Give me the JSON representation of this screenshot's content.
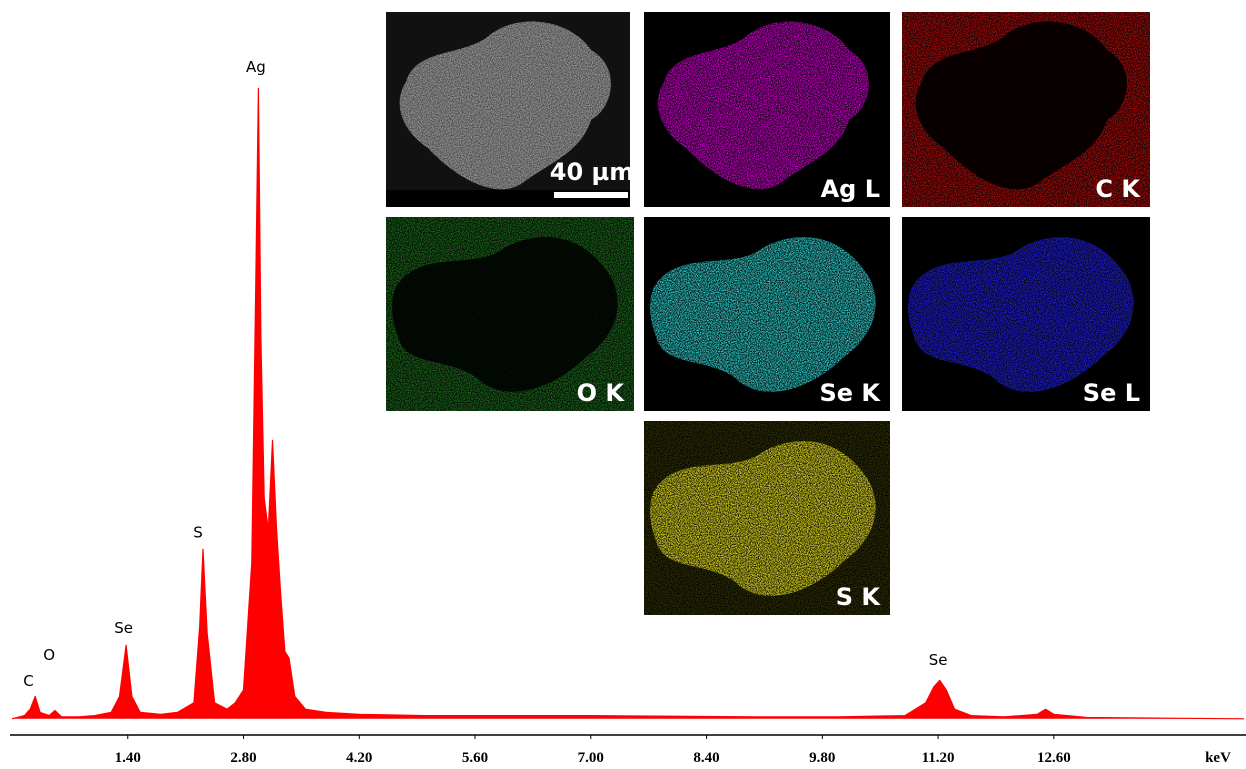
{
  "chart_data": {
    "type": "area",
    "color": "#ff0000",
    "x": [
      0,
      0.15,
      0.22,
      0.28,
      0.34,
      0.45,
      0.52,
      0.6,
      0.8,
      1.0,
      1.2,
      1.3,
      1.38,
      1.45,
      1.55,
      1.8,
      2.0,
      2.2,
      2.27,
      2.31,
      2.36,
      2.45,
      2.6,
      2.7,
      2.8,
      2.9,
      2.95,
      2.98,
      3.01,
      3.05,
      3.1,
      3.15,
      3.2,
      3.25,
      3.3,
      3.35,
      3.42,
      3.55,
      3.8,
      4.2,
      5.0,
      6.0,
      7.0,
      8.0,
      9.0,
      10.0,
      10.8,
      11.05,
      11.15,
      11.22,
      11.3,
      11.4,
      11.6,
      12.0,
      12.4,
      12.5,
      12.6,
      13.0,
      14.0,
      14.9
    ],
    "values": [
      0.5,
      1,
      2,
      4,
      1.5,
      1,
      1.8,
      0.8,
      0.8,
      1,
      1.5,
      4,
      12,
      4,
      1.5,
      1.2,
      1.5,
      3,
      15,
      27,
      14,
      3,
      2,
      3,
      5,
      25,
      70,
      99,
      60,
      35,
      30,
      44,
      30,
      20,
      11,
      10,
      4,
      2,
      1.5,
      1.2,
      1,
      1,
      1,
      0.9,
      0.8,
      0.8,
      1,
      3,
      5.5,
      6.5,
      5,
      2,
      1,
      0.8,
      1.2,
      2,
      1.2,
      0.7,
      0.6,
      0.5
    ],
    "xlim": [
      0,
      14.9
    ],
    "ylim": [
      0,
      105
    ],
    "xticks": [
      {
        "value": 1.4,
        "label": "1.40"
      },
      {
        "value": 2.8,
        "label": "2.80"
      },
      {
        "value": 4.2,
        "label": "4.20"
      },
      {
        "value": 5.6,
        "label": "5.60"
      },
      {
        "value": 7.0,
        "label": "7.00"
      },
      {
        "value": 8.4,
        "label": "8.40"
      },
      {
        "value": 9.8,
        "label": "9.80"
      },
      {
        "value": 11.2,
        "label": "11.20"
      },
      {
        "value": 12.6,
        "label": "12.60"
      }
    ],
    "x_label": "keV",
    "annotations": [
      {
        "text": "C",
        "x": 0.2,
        "y": 5.6
      },
      {
        "text": "O",
        "x": 0.45,
        "y": 9.7
      },
      {
        "text": "Se",
        "x": 1.35,
        "y": 13.9
      },
      {
        "text": "S",
        "x": 2.25,
        "y": 28.8
      },
      {
        "text": "Ag",
        "x": 2.95,
        "y": 101.6
      },
      {
        "text": "Se",
        "x": 11.2,
        "y": 8.9
      }
    ]
  },
  "insets": {
    "sem_scale": "40 µm",
    "maps": [
      "Ag L",
      "C K",
      "O K",
      "Se K",
      "Se L",
      "S K"
    ]
  }
}
